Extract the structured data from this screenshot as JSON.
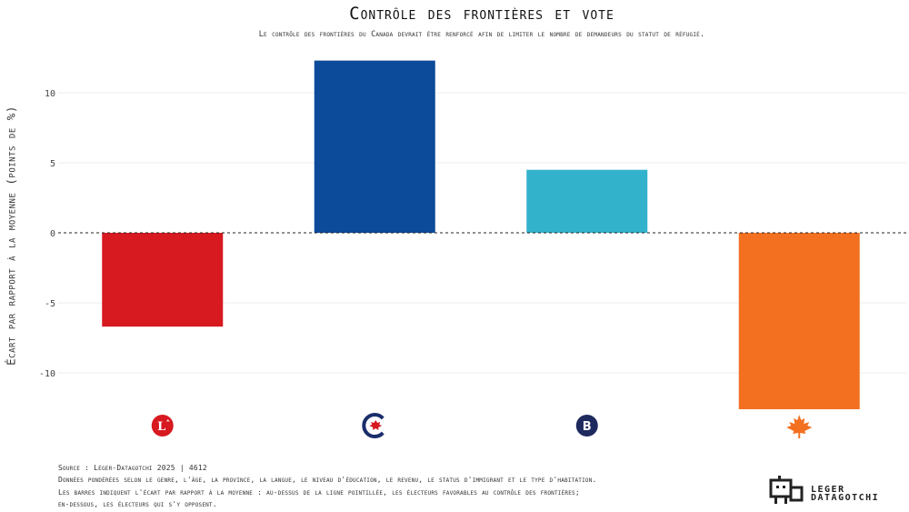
{
  "chart_data": {
    "type": "bar",
    "title": "Contrôle des frontières et vote",
    "subtitle": "Le contrôle des frontières du Canada devrait être renforcé afin de limiter le nombre de demandeurs du statut de réfugié.",
    "xlabel": "",
    "ylabel": "Écart par rapport à la moyenne (points de %)",
    "ylim": [
      -12.6,
      12.6
    ],
    "yticks": [
      -10,
      -5,
      0,
      5,
      10
    ],
    "ytick_labels": [
      "-10",
      "-5",
      "0",
      "5",
      "10"
    ],
    "grid": true,
    "categories": [
      "Libéral",
      "Conservateur",
      "Bloc Québécois",
      "NPD"
    ],
    "values": [
      -6.7,
      12.3,
      4.5,
      -12.6
    ],
    "colors": [
      "#d71920",
      "#0c4a9a",
      "#33b2cc",
      "#f37021"
    ],
    "category_icons": [
      "liberal-party-logo-icon",
      "conservative-party-logo-icon",
      "bloc-quebecois-logo-icon",
      "ndp-maple-leaf-icon"
    ],
    "reference_line": 0
  },
  "footer": {
    "source": "Source : Léger-Datagotchi 2025 | 4612",
    "note1": "Données pondérées selon le genre, l'âge, la province, la langue, le niveau d'éducation, le revenu, le status d'immigrant et le type d'habitation.",
    "note2": "Les barres indiquent l'écart par rapport à la moyenne : au-dessus de la ligne pointillée, les électeurs favorables au contrôle des frontières;",
    "note3": "en-dessous, les électeurs qui s'y opposent."
  },
  "brand": {
    "line1": "LEGER",
    "line2": "DATAGOTCHI"
  }
}
